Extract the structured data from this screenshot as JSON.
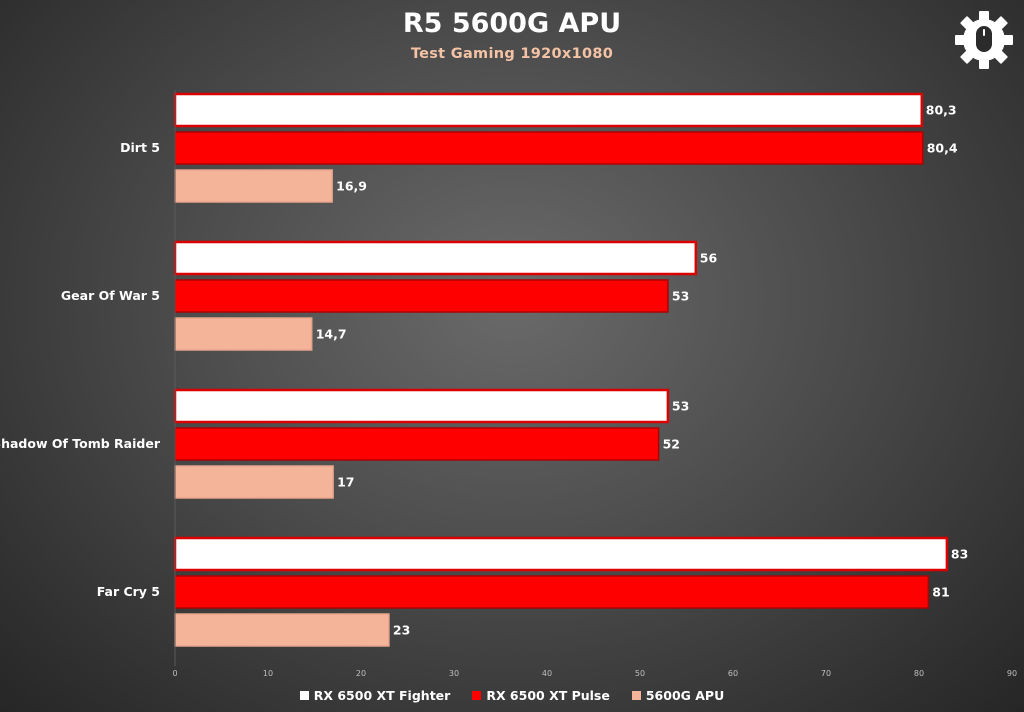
{
  "chart_data": {
    "type": "bar",
    "orientation": "horizontal",
    "title": "R5 5600G APU",
    "subtitle": "Test Gaming 1920x1080",
    "categories": [
      "Dirt 5",
      "Gear Of War 5",
      "Shadow Of Tomb Raider",
      "Far Cry 5"
    ],
    "series": [
      {
        "name": "RX 6500 XT Fighter",
        "values": [
          80.3,
          56,
          53,
          83
        ],
        "labels": [
          "80,3",
          "56",
          "53",
          "83"
        ],
        "color": "#ffffff",
        "border": "#dd0000"
      },
      {
        "name": "RX 6500 XT Pulse",
        "values": [
          80.4,
          53,
          52,
          81
        ],
        "labels": [
          "80,4",
          "53",
          "52",
          "81"
        ],
        "color": "#ff0000",
        "border": "#b00000"
      },
      {
        "name": "5600G APU",
        "values": [
          16.9,
          14.7,
          17,
          23
        ],
        "labels": [
          "16,9",
          "14,7",
          "17",
          "23"
        ],
        "color": "#f4b49a",
        "border": "#e8a48a"
      }
    ],
    "xlim": [
      0,
      90
    ],
    "xticks": [
      "0",
      "10",
      "20",
      "30",
      "40",
      "50",
      "60",
      "70",
      "80",
      "90"
    ],
    "grid": false,
    "legend_position": "bottom"
  },
  "logo_icon": "gear-mouse-icon"
}
